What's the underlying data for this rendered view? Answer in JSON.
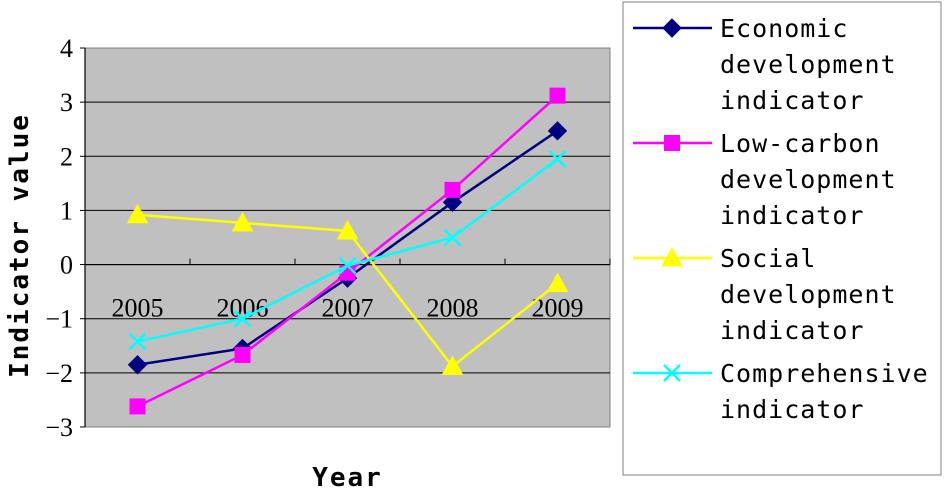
{
  "chart_data": {
    "type": "line",
    "title": "",
    "xlabel": "Year",
    "ylabel": "Indicator value",
    "categories": [
      "2005",
      "2006",
      "2007",
      "2008",
      "2009"
    ],
    "ylim": [
      -3,
      4
    ],
    "yticks": [
      "4",
      "3",
      "2",
      "1",
      "0",
      "−1",
      "−2",
      "−3"
    ],
    "grid": true,
    "legend_position": "right",
    "plot_background": "#c0c0c0",
    "series": [
      {
        "name_lines": [
          "Economic",
          "development",
          "indicator"
        ],
        "values": [
          -1.85,
          -1.55,
          -0.25,
          1.15,
          2.47
        ],
        "color": "#000080",
        "marker": "diamond"
      },
      {
        "name_lines": [
          "Low-carbon",
          "development",
          "indicator"
        ],
        "values": [
          -2.62,
          -1.67,
          -0.15,
          1.38,
          3.12
        ],
        "color": "#ff00ff",
        "marker": "square"
      },
      {
        "name_lines": [
          "Social",
          "development",
          "indicator"
        ],
        "values": [
          0.92,
          0.77,
          0.62,
          -1.88,
          -0.35
        ],
        "color": "#ffff00",
        "marker": "triangle"
      },
      {
        "name_lines": [
          "Comprehensive",
          "indicator"
        ],
        "values": [
          -1.42,
          -1.0,
          -0.02,
          0.5,
          1.95
        ],
        "color": "#00ffff",
        "marker": "x"
      }
    ]
  }
}
